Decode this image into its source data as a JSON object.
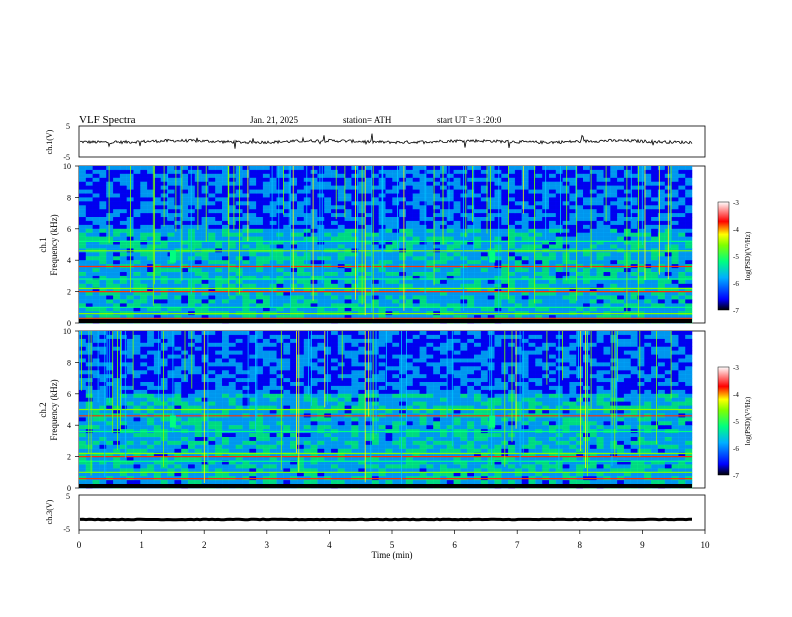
{
  "header": {
    "title": "VLF  Spectra",
    "date": "Jan. 21, 2025",
    "station": "station= ATH",
    "start_ut": "start  UT  =   3  :20:0"
  },
  "colors": {
    "colormap": [
      "#000000",
      "#0000ff",
      "#00b0ff",
      "#00ff80",
      "#7fff00",
      "#ffff00",
      "#ff0000",
      "#ffffff"
    ],
    "background": "#00008f",
    "trace": "#000000"
  },
  "chart_data": [
    {
      "type": "line",
      "title": "",
      "xlabel": "",
      "ylabel": "ch.1(V)",
      "ylim": [
        -5,
        5
      ],
      "yticks": [
        "5",
        "-5"
      ],
      "xlim": [
        0,
        10
      ],
      "series": [
        {
          "values_desc": "noisy waveform around 0 V (approx. -1 to +1 V with spikes)",
          "mean": 0.0,
          "amplitude": 0.8
        }
      ]
    },
    {
      "type": "heatmap",
      "title": "",
      "xlabel": "",
      "ylabel": "ch.1\nFrequency  (kHz)",
      "ylim": [
        0,
        10
      ],
      "yticks": [
        "0",
        "2",
        "4",
        "6",
        "8",
        "10"
      ],
      "xlim": [
        0,
        10
      ],
      "colorbar": {
        "label": "log(PSD)(V²/Hz)",
        "range": [
          -7,
          -3
        ],
        "ticks": [
          "-3",
          "-4",
          "-5",
          "-6",
          "-7"
        ]
      },
      "bands_khz": [
        0.3,
        0.6,
        1.0,
        2.0,
        2.2,
        2.8,
        3.6,
        4.6,
        5.2
      ],
      "bursts_min": [
        1.5,
        6.6
      ]
    },
    {
      "type": "heatmap",
      "title": "",
      "xlabel": "",
      "ylabel": "ch.2\nFrequency  (kHz)",
      "ylim": [
        0,
        10
      ],
      "yticks": [
        "0",
        "2",
        "4",
        "6",
        "8",
        "10"
      ],
      "xlim": [
        0,
        10
      ],
      "colorbar": {
        "label": "log(PSD)(V²/Hz)",
        "range": [
          -7,
          -3
        ],
        "ticks": [
          "-3",
          "-4",
          "-5",
          "-6",
          "-7"
        ]
      },
      "bands_khz": [
        0.6,
        1.0,
        1.7,
        2.0,
        2.2,
        3.6,
        4.6,
        5.0
      ],
      "bursts_min": [
        1.5,
        6.6
      ]
    },
    {
      "type": "line",
      "title": "",
      "xlabel": "Time  (min)",
      "ylabel": "ch.3(V)",
      "ylim": [
        -5,
        5
      ],
      "yticks": [
        "5",
        "-5"
      ],
      "xlim": [
        0,
        10
      ],
      "xticks": [
        "0",
        "1",
        "2",
        "3",
        "4",
        "5",
        "6",
        "7",
        "8",
        "9",
        "10"
      ],
      "series": [
        {
          "values_desc": "flat thick trace near -2 V",
          "mean": -2.0,
          "amplitude": 0.15
        }
      ]
    }
  ]
}
